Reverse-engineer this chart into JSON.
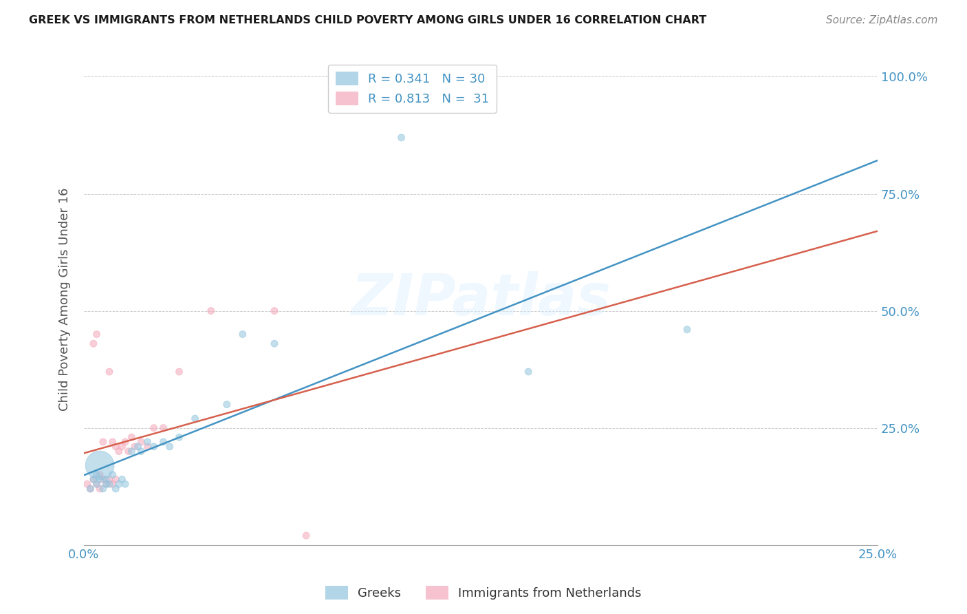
{
  "title": "GREEK VS IMMIGRANTS FROM NETHERLANDS CHILD POVERTY AMONG GIRLS UNDER 16 CORRELATION CHART",
  "source": "Source: ZipAtlas.com",
  "ylabel": "Child Poverty Among Girls Under 16",
  "xlim": [
    0.0,
    0.25
  ],
  "ylim": [
    0.0,
    1.05
  ],
  "xticks": [
    0.0,
    0.05,
    0.1,
    0.15,
    0.2,
    0.25
  ],
  "yticks": [
    0.0,
    0.25,
    0.5,
    0.75,
    1.0
  ],
  "legend_labels": [
    "Greeks",
    "Immigrants from Netherlands"
  ],
  "blue_color": "#92c5de",
  "pink_color": "#f4a8bb",
  "blue_line_color": "#4393c3",
  "pink_line_color": "#d6604d",
  "tick_color": "#4393c3",
  "R_blue": 0.341,
  "N_blue": 30,
  "R_pink": 0.813,
  "N_pink": 31,
  "watermark": "ZIPatlas",
  "blue_x": [
    0.002,
    0.003,
    0.004,
    0.004,
    0.005,
    0.005,
    0.006,
    0.007,
    0.007,
    0.008,
    0.009,
    0.01,
    0.011,
    0.012,
    0.013,
    0.015,
    0.017,
    0.018,
    0.02,
    0.022,
    0.025,
    0.027,
    0.03,
    0.035,
    0.045,
    0.05,
    0.06,
    0.1,
    0.14,
    0.19
  ],
  "blue_y": [
    0.12,
    0.14,
    0.13,
    0.15,
    0.14,
    0.17,
    0.12,
    0.13,
    0.14,
    0.13,
    0.15,
    0.12,
    0.13,
    0.14,
    0.13,
    0.2,
    0.21,
    0.2,
    0.22,
    0.21,
    0.22,
    0.21,
    0.23,
    0.27,
    0.3,
    0.45,
    0.43,
    0.87,
    0.37,
    0.46
  ],
  "blue_size": [
    50,
    50,
    50,
    50,
    50,
    900,
    50,
    50,
    50,
    50,
    50,
    50,
    50,
    50,
    50,
    50,
    50,
    50,
    50,
    50,
    50,
    50,
    50,
    50,
    50,
    50,
    50,
    50,
    50,
    50
  ],
  "pink_x": [
    0.001,
    0.002,
    0.003,
    0.003,
    0.004,
    0.004,
    0.005,
    0.005,
    0.006,
    0.006,
    0.007,
    0.008,
    0.008,
    0.009,
    0.009,
    0.01,
    0.01,
    0.011,
    0.012,
    0.013,
    0.014,
    0.015,
    0.016,
    0.018,
    0.02,
    0.022,
    0.025,
    0.03,
    0.04,
    0.06,
    0.07
  ],
  "pink_y": [
    0.13,
    0.12,
    0.14,
    0.43,
    0.13,
    0.45,
    0.12,
    0.15,
    0.14,
    0.22,
    0.13,
    0.14,
    0.37,
    0.13,
    0.22,
    0.14,
    0.21,
    0.2,
    0.21,
    0.22,
    0.2,
    0.23,
    0.21,
    0.22,
    0.21,
    0.25,
    0.25,
    0.37,
    0.5,
    0.5,
    0.02
  ],
  "pink_size": [
    50,
    50,
    50,
    50,
    50,
    50,
    50,
    50,
    50,
    50,
    50,
    50,
    50,
    50,
    50,
    50,
    50,
    50,
    50,
    50,
    50,
    50,
    50,
    50,
    50,
    50,
    50,
    50,
    50,
    50,
    50
  ]
}
